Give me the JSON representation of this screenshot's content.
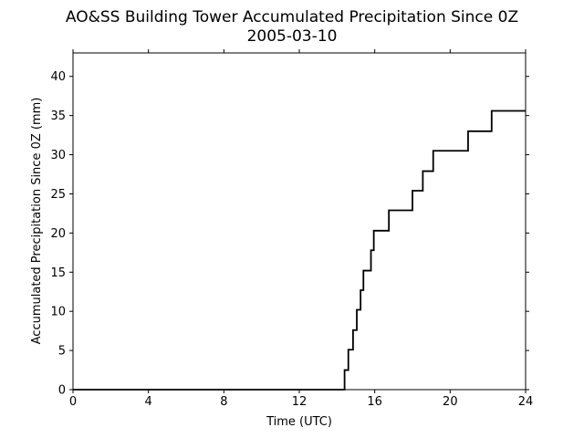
{
  "chart_data": {
    "type": "line",
    "title": "AO&SS Building Tower Accumulated Precipitation Since 0Z",
    "subtitle": "2005-03-10",
    "xlabel": "Time (UTC)",
    "ylabel": "Accumulated Precipitation Since 0Z (mm)",
    "xlim": [
      0,
      24
    ],
    "ylim": [
      0,
      43
    ],
    "xticks": [
      0,
      4,
      8,
      12,
      16,
      20,
      24
    ],
    "yticks": [
      0,
      5,
      10,
      15,
      20,
      25,
      30,
      35,
      40
    ],
    "grid": false,
    "line_color": "#000000",
    "series": [
      {
        "step": "post",
        "x": [
          0,
          14.4,
          14.6,
          14.85,
          15.05,
          15.25,
          15.4,
          15.8,
          15.95,
          16.75,
          18.0,
          18.55,
          19.1,
          20.95,
          22.2,
          24
        ],
        "y": [
          0,
          2.5,
          5.1,
          7.6,
          10.2,
          12.7,
          15.2,
          17.8,
          20.3,
          22.9,
          25.4,
          27.9,
          30.5,
          33.0,
          35.6,
          35.6
        ]
      }
    ]
  }
}
